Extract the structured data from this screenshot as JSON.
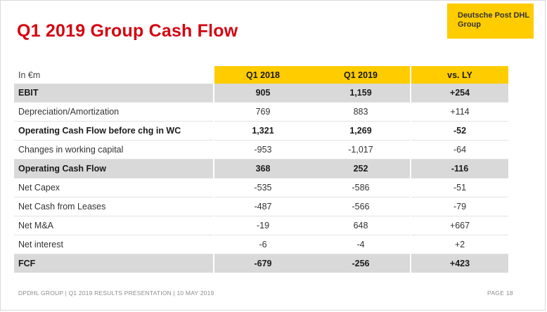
{
  "title": "Q1 2019 Group Cash Flow",
  "logo": {
    "text": "Deutsche Post DHL\nGroup"
  },
  "table": {
    "unit_label": "In €m",
    "columns": [
      "Q1 2018",
      "Q1 2019",
      "vs. LY"
    ],
    "rows": [
      {
        "label": "EBIT",
        "values": [
          "905",
          "1,159",
          "+254"
        ]
      },
      {
        "label": "Depreciation/Amortization",
        "values": [
          "769",
          "883",
          "+114"
        ]
      },
      {
        "label": "Operating Cash Flow before chg in WC",
        "values": [
          "1,321",
          "1,269",
          "-52"
        ]
      },
      {
        "label": "Changes in working capital",
        "values": [
          "-953",
          "-1,017",
          "-64"
        ]
      },
      {
        "label": "Operating Cash Flow",
        "values": [
          "368",
          "252",
          "-116"
        ]
      },
      {
        "label": "Net Capex",
        "values": [
          "-535",
          "-586",
          "-51"
        ]
      },
      {
        "label": "Net Cash from Leases",
        "values": [
          "-487",
          "-566",
          "-79"
        ]
      },
      {
        "label": "Net M&A",
        "values": [
          "-19",
          "648",
          "+667"
        ]
      },
      {
        "label": "Net interest",
        "values": [
          "-6",
          "-4",
          "+2"
        ]
      },
      {
        "label": "FCF",
        "values": [
          "-679",
          "-256",
          "+423"
        ]
      }
    ]
  },
  "colors": {
    "accent_red": "#d40511",
    "dhl_yellow": "#ffcc00",
    "row_shade": "#d9d9d9"
  },
  "footer": {
    "left": "DPDHL GROUP | Q1 2019 RESULTS PRESENTATION | 10 MAY 2019",
    "right": "PAGE 18"
  }
}
